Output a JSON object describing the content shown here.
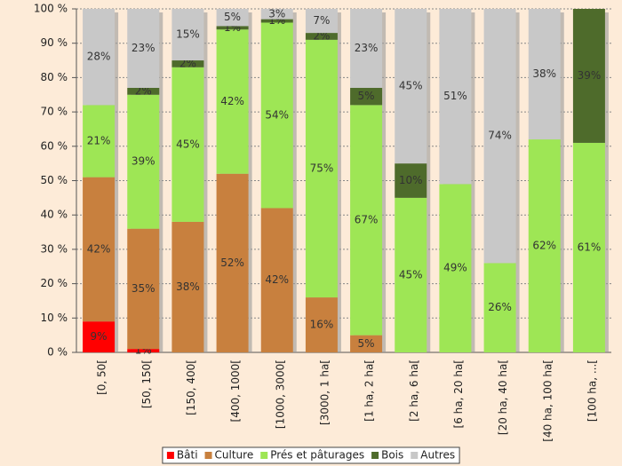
{
  "chart_data": {
    "type": "stacked-bar",
    "categories": [
      "[0, 50[",
      "[50, 150[",
      "[150, 400[",
      "[400, 1000[",
      "[1000, 3000[",
      "[3000, 1 ha[",
      "[1 ha, 2 ha[",
      "[2 ha, 6 ha[",
      "[6 ha, 20 ha[",
      "[20 ha, 40 ha[",
      "[40 ha, 100 ha[",
      "[100 ha, ...["
    ],
    "series": [
      {
        "name": "Bâti",
        "color": "#ff0000",
        "values": [
          9,
          1,
          0,
          0,
          0,
          0,
          0,
          0,
          0,
          0,
          0,
          0
        ],
        "value_labels": [
          "9%",
          "1%",
          null,
          null,
          null,
          null,
          null,
          null,
          null,
          null,
          null,
          null
        ]
      },
      {
        "name": "Culture",
        "color": "#c8803e",
        "values": [
          42,
          35,
          38,
          52,
          42,
          16,
          5,
          0,
          0,
          0,
          0,
          0
        ],
        "value_labels": [
          "42%",
          "35%",
          "38%",
          "52%",
          "42%",
          "16%",
          "5%",
          null,
          null,
          null,
          null,
          null
        ]
      },
      {
        "name": "Prés et pâturages",
        "color": "#9ee655",
        "values": [
          21,
          39,
          45,
          42,
          54,
          75,
          67,
          45,
          49,
          26,
          62,
          61
        ],
        "value_labels": [
          "21%",
          "39%",
          "45%",
          "42%",
          "54%",
          "75%",
          "67%",
          "45%",
          "49%",
          "26%",
          "62%",
          "61%"
        ]
      },
      {
        "name": "Bois",
        "color": "#4e6b2b",
        "values": [
          0,
          2,
          2,
          1,
          1,
          2,
          5,
          10,
          0,
          0,
          0,
          39
        ],
        "value_labels": [
          null,
          "2%",
          "2%",
          "1%",
          "1%",
          "2%",
          "5%",
          "10%",
          null,
          null,
          null,
          "39%"
        ]
      },
      {
        "name": "Autres",
        "color": "#c8c8c8",
        "values": [
          28,
          23,
          15,
          5,
          3,
          7,
          23,
          45,
          51,
          74,
          38,
          0
        ],
        "value_labels": [
          "28%",
          "23%",
          "15%",
          "5%",
          "3%",
          "7%",
          "23%",
          "45%",
          "51%",
          "74%",
          "38%",
          null
        ]
      }
    ],
    "ylim": [
      0,
      100
    ],
    "yticks": [
      {
        "value": 0,
        "label": "0 %"
      },
      {
        "value": 10,
        "label": "10 %"
      },
      {
        "value": 20,
        "label": "20 %"
      },
      {
        "value": 30,
        "label": "30 %"
      },
      {
        "value": 40,
        "label": "40 %"
      },
      {
        "value": 50,
        "label": "50 %"
      },
      {
        "value": 60,
        "label": "60 %"
      },
      {
        "value": 70,
        "label": "70 %"
      },
      {
        "value": 80,
        "label": "80 %"
      },
      {
        "value": 90,
        "label": "90 %"
      },
      {
        "value": 100,
        "label": "100 %"
      }
    ],
    "grid": true,
    "legend": "bottom"
  }
}
